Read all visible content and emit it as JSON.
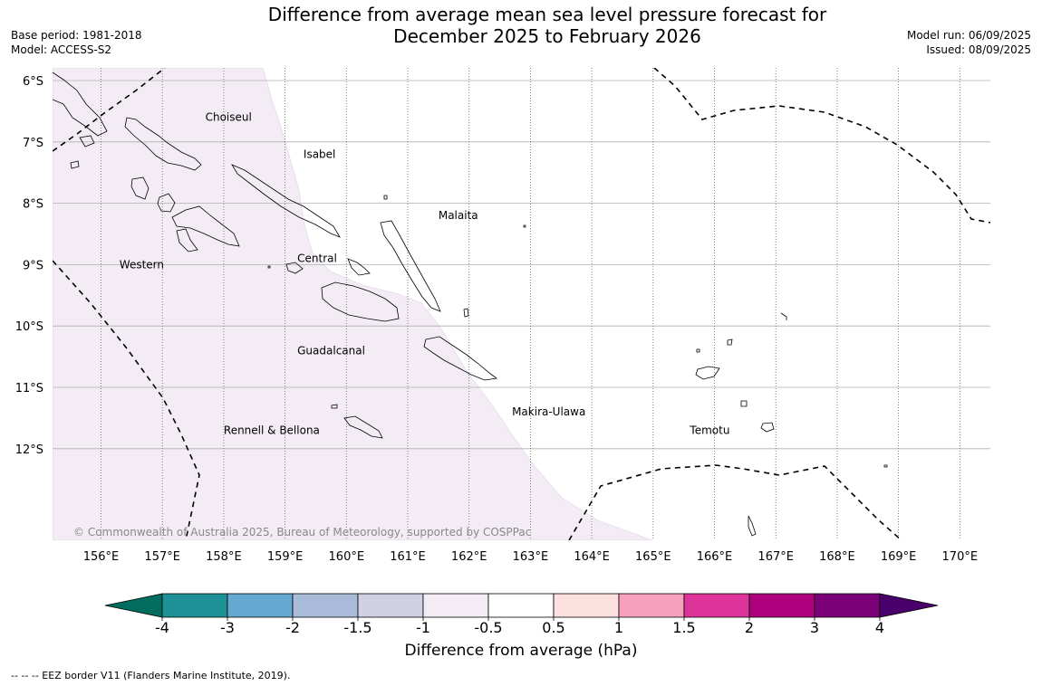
{
  "header": {
    "title_line1": "Difference from average mean sea level pressure forecast for",
    "title_line2": "December 2025 to February 2026",
    "base_period": "Base period: 1981-2018",
    "model": "Model: ACCESS-S2",
    "model_run": "Model run: 06/09/2025",
    "issued": "Issued: 08/09/2025"
  },
  "map": {
    "lat_labels": [
      "6°S",
      "7°S",
      "8°S",
      "9°S",
      "10°S",
      "11°S",
      "12°S"
    ],
    "lat_values": [
      -6,
      -7,
      -8,
      -9,
      -10,
      -11,
      -12
    ],
    "lon_labels": [
      "156°E",
      "157°E",
      "158°E",
      "159°E",
      "160°E",
      "161°E",
      "162°E",
      "163°E",
      "164°E",
      "165°E",
      "166°E",
      "167°E",
      "168°E",
      "169°E",
      "170°E"
    ],
    "lon_values": [
      156,
      157,
      158,
      159,
      160,
      161,
      162,
      163,
      164,
      165,
      166,
      167,
      168,
      169,
      170
    ],
    "regions": [
      {
        "name": "Choiseul",
        "lon": 157.7,
        "lat": -6.6
      },
      {
        "name": "Isabel",
        "lon": 159.3,
        "lat": -7.2
      },
      {
        "name": "Malaita",
        "lon": 161.5,
        "lat": -8.2
      },
      {
        "name": "Western",
        "lon": 156.3,
        "lat": -9.0
      },
      {
        "name": "Central",
        "lon": 159.2,
        "lat": -8.9
      },
      {
        "name": "Guadalcanal",
        "lon": 159.2,
        "lat": -10.4
      },
      {
        "name": "Makira-Ulawa",
        "lon": 162.7,
        "lat": -11.4
      },
      {
        "name": "Rennell & Bellona",
        "lon": 158.0,
        "lat": -11.7
      },
      {
        "name": "Temotu",
        "lon": 165.6,
        "lat": -11.7
      }
    ],
    "shading_category": "-1 to -0.5",
    "shading_color": "#f3ecf5",
    "copyright": "© Commonwealth of Australia 2025, Bureau of Meteorology, supported by COSPPac"
  },
  "colorbar": {
    "ticks": [
      "-4",
      "-3",
      "-2",
      "-1.5",
      "-1",
      "-0.5",
      "0.5",
      "1",
      "1.5",
      "2",
      "3",
      "4"
    ],
    "colors": [
      "#1e9197",
      "#66a9d0",
      "#a8bbd9",
      "#d0d1e5",
      "#f3ecf5",
      "#ffffff",
      "#fde0e0",
      "#f8a0be",
      "#dd3499",
      "#ae017e",
      "#7a0177"
    ],
    "under_color": "#006d5e",
    "over_color": "#49006a",
    "label": "Difference from average (hPa)"
  },
  "footnote": "-- -- -- EEZ border V11 (Flanders Marine Institute, 2019)."
}
